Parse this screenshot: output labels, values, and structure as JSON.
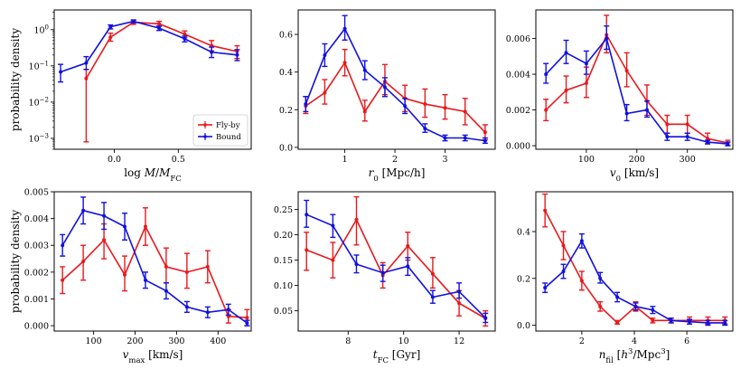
{
  "colors": {
    "flyby": "#e8191c",
    "bound": "#1010e0",
    "axis": "#000000",
    "background": "#ffffff"
  },
  "y_axis_label": "probability density",
  "legend": {
    "entries": [
      "Fly-by",
      "Bound"
    ],
    "placement": "lower-right",
    "panel": 0
  },
  "chart_data": [
    {
      "type": "line",
      "title": "",
      "xlabel": "log M/M_FC",
      "ylabel": "probability density",
      "yscale": "log",
      "xlim": [
        -0.47,
        1.07
      ],
      "ylim": [
        0.0005,
        3.5
      ],
      "xticks": [
        0,
        0.5
      ],
      "xtick_labels": [
        "0.0",
        "0.5"
      ],
      "yticks": [
        0.001,
        0.01,
        0.1,
        1
      ],
      "ytick_labels": [
        "10⁻³",
        "10⁻²",
        "10⁻¹",
        "10⁰"
      ],
      "series": [
        {
          "name": "Fly-by",
          "x": [
            -0.22,
            -0.03,
            0.15,
            0.35,
            0.55,
            0.76,
            0.96
          ],
          "y": [
            0.045,
            0.62,
            1.6,
            1.45,
            0.75,
            0.36,
            0.25
          ],
          "err_low": [
            0.0008,
            0.48,
            1.4,
            1.25,
            0.6,
            0.26,
            0.16
          ],
          "err_high": [
            0.08,
            0.8,
            1.85,
            1.7,
            0.92,
            0.5,
            0.36
          ]
        },
        {
          "name": "Bound",
          "x": [
            -0.42,
            -0.22,
            -0.03,
            0.15,
            0.35,
            0.55,
            0.76,
            0.96
          ],
          "y": [
            0.068,
            0.12,
            1.2,
            1.7,
            1.1,
            0.56,
            0.24,
            0.2
          ],
          "err_low": [
            0.036,
            0.08,
            1.05,
            1.55,
            0.95,
            0.46,
            0.17,
            0.14
          ],
          "err_high": [
            0.11,
            0.18,
            1.35,
            1.85,
            1.25,
            0.66,
            0.33,
            0.28
          ]
        }
      ]
    },
    {
      "type": "line",
      "title": "",
      "xlabel": "r_0 [Mpc/h]",
      "ylabel": "",
      "xlim": [
        0.07,
        4.0
      ],
      "ylim": [
        -0.01,
        0.73
      ],
      "xticks": [
        1,
        2,
        3
      ],
      "xtick_labels": [
        "1",
        "2",
        "3"
      ],
      "yticks": [
        0,
        0.2,
        0.4,
        0.6
      ],
      "ytick_labels": [
        "0.0",
        "0.2",
        "0.4",
        "0.6"
      ],
      "series": [
        {
          "name": "Fly-by",
          "x": [
            0.22,
            0.6,
            1.0,
            1.4,
            1.8,
            2.2,
            2.6,
            3.0,
            3.4,
            3.8
          ],
          "y": [
            0.22,
            0.29,
            0.45,
            0.19,
            0.35,
            0.26,
            0.23,
            0.21,
            0.19,
            0.08
          ],
          "err_low": [
            0.18,
            0.23,
            0.38,
            0.14,
            0.28,
            0.19,
            0.16,
            0.15,
            0.12,
            0.04
          ],
          "err_high": [
            0.27,
            0.36,
            0.52,
            0.25,
            0.44,
            0.33,
            0.31,
            0.28,
            0.26,
            0.12
          ]
        },
        {
          "name": "Bound",
          "x": [
            0.22,
            0.6,
            1.0,
            1.4,
            1.8,
            2.2,
            2.6,
            3.0,
            3.4,
            3.8
          ],
          "y": [
            0.23,
            0.49,
            0.63,
            0.41,
            0.32,
            0.22,
            0.1,
            0.05,
            0.05,
            0.035
          ],
          "err_low": [
            0.19,
            0.43,
            0.57,
            0.36,
            0.27,
            0.18,
            0.08,
            0.035,
            0.035,
            0.022
          ],
          "err_high": [
            0.27,
            0.55,
            0.7,
            0.46,
            0.37,
            0.26,
            0.125,
            0.065,
            0.065,
            0.05
          ]
        }
      ]
    },
    {
      "type": "line",
      "title": "",
      "xlabel": "v_0 [km/s]",
      "ylabel": "",
      "xlim": [
        0,
        390
      ],
      "ylim": [
        -0.0002,
        0.0076
      ],
      "xticks": [
        100,
        200,
        300
      ],
      "xtick_labels": [
        "100",
        "200",
        "300"
      ],
      "yticks": [
        0,
        0.002,
        0.004,
        0.006
      ],
      "ytick_labels": [
        "0.000",
        "0.002",
        "0.004",
        "0.006"
      ],
      "series": [
        {
          "name": "Fly-by",
          "x": [
            20,
            60,
            100,
            140,
            180,
            220,
            260,
            300,
            340,
            380
          ],
          "y": [
            0.002,
            0.0031,
            0.0035,
            0.0062,
            0.0042,
            0.0025,
            0.0012,
            0.0012,
            0.0004,
            0.00015
          ],
          "err_low": [
            0.0014,
            0.0024,
            0.0027,
            0.0052,
            0.0033,
            0.0017,
            0.0007,
            0.0007,
            0.0001,
            0.0
          ],
          "err_high": [
            0.0026,
            0.0039,
            0.0044,
            0.0073,
            0.0052,
            0.0034,
            0.0017,
            0.0017,
            0.0007,
            0.0003
          ]
        },
        {
          "name": "Bound",
          "x": [
            20,
            60,
            100,
            140,
            180,
            220,
            260,
            300,
            340,
            380
          ],
          "y": [
            0.004,
            0.0052,
            0.0046,
            0.006,
            0.0018,
            0.002,
            0.0005,
            0.0005,
            0.0002,
            0.0001
          ],
          "err_low": [
            0.0035,
            0.0046,
            0.004,
            0.0054,
            0.0014,
            0.0016,
            0.0003,
            0.0003,
            0.0001,
            0.0
          ],
          "err_high": [
            0.0046,
            0.0059,
            0.0053,
            0.0067,
            0.0023,
            0.0025,
            0.0007,
            0.0007,
            0.0003,
            0.0002
          ]
        }
      ]
    },
    {
      "type": "line",
      "title": "",
      "xlabel": "v_max [km/s]",
      "ylabel": "probability density",
      "xlim": [
        5,
        480
      ],
      "ylim": [
        -0.0002,
        0.005
      ],
      "xticks": [
        100,
        200,
        300,
        400
      ],
      "xtick_labels": [
        "100",
        "200",
        "300",
        "400"
      ],
      "yticks": [
        0,
        0.001,
        0.002,
        0.003,
        0.004,
        0.005
      ],
      "ytick_labels": [
        "0.000",
        "0.001",
        "0.002",
        "0.003",
        "0.004",
        "0.005"
      ],
      "series": [
        {
          "name": "Fly-by",
          "x": [
            25,
            75,
            125,
            175,
            225,
            275,
            325,
            375,
            425,
            470
          ],
          "y": [
            0.0017,
            0.0024,
            0.0032,
            0.0019,
            0.0037,
            0.0022,
            0.002,
            0.0022,
            0.00035,
            0.0003
          ],
          "err_low": [
            0.0012,
            0.0017,
            0.0025,
            0.0013,
            0.003,
            0.0016,
            0.0014,
            0.0016,
            0.0001,
            0.0
          ],
          "err_high": [
            0.0022,
            0.003,
            0.0038,
            0.0026,
            0.0044,
            0.0029,
            0.0027,
            0.0028,
            0.0006,
            0.0006
          ]
        },
        {
          "name": "Bound",
          "x": [
            25,
            75,
            125,
            175,
            225,
            275,
            325,
            375,
            425,
            470
          ],
          "y": [
            0.003,
            0.0043,
            0.0041,
            0.0037,
            0.0017,
            0.0013,
            0.0007,
            0.0005,
            0.0006,
            0.0001
          ],
          "err_low": [
            0.0026,
            0.0038,
            0.0036,
            0.0032,
            0.0014,
            0.001,
            0.0005,
            0.0003,
            0.0004,
            0.0
          ],
          "err_high": [
            0.0034,
            0.0048,
            0.0046,
            0.0042,
            0.002,
            0.0016,
            0.0009,
            0.0007,
            0.0008,
            0.0002
          ]
        }
      ]
    },
    {
      "type": "line",
      "title": "",
      "xlabel": "t_FC [Gyr]",
      "ylabel": "",
      "xlim": [
        6.2,
        13.3
      ],
      "ylim": [
        0.01,
        0.285
      ],
      "xticks": [
        8,
        10,
        12
      ],
      "xtick_labels": [
        "8",
        "10",
        "12"
      ],
      "yticks": [
        0.05,
        0.1,
        0.15,
        0.2,
        0.25
      ],
      "ytick_labels": [
        "0.05",
        "0.10",
        "0.15",
        "0.20",
        "0.25"
      ],
      "series": [
        {
          "name": "Fly-by",
          "x": [
            6.5,
            7.45,
            8.3,
            9.25,
            10.15,
            11.05,
            12.0,
            12.95
          ],
          "y": [
            0.17,
            0.15,
            0.23,
            0.12,
            0.178,
            0.123,
            0.065,
            0.035
          ],
          "err_low": [
            0.13,
            0.115,
            0.18,
            0.095,
            0.15,
            0.095,
            0.04,
            0.02
          ],
          "err_high": [
            0.205,
            0.185,
            0.275,
            0.145,
            0.205,
            0.155,
            0.09,
            0.05
          ]
        },
        {
          "name": "Bound",
          "x": [
            6.5,
            7.45,
            8.3,
            9.25,
            10.15,
            11.05,
            12.0,
            12.95
          ],
          "y": [
            0.24,
            0.218,
            0.142,
            0.125,
            0.138,
            0.077,
            0.088,
            0.036
          ],
          "err_low": [
            0.215,
            0.195,
            0.125,
            0.108,
            0.12,
            0.065,
            0.075,
            0.027
          ],
          "err_high": [
            0.268,
            0.24,
            0.16,
            0.14,
            0.155,
            0.09,
            0.105,
            0.045
          ]
        }
      ]
    },
    {
      "type": "line",
      "title": "",
      "xlabel": "n_fil [h^3/Mpc^3]",
      "ylabel": "",
      "xlim": [
        0.25,
        7.75
      ],
      "ylim": [
        -0.025,
        0.57
      ],
      "xticks": [
        2,
        4,
        6
      ],
      "xtick_labels": [
        "2",
        "4",
        "6"
      ],
      "yticks": [
        0,
        0.2,
        0.4
      ],
      "ytick_labels": [
        "0.0",
        "0.2",
        "0.4"
      ],
      "series": [
        {
          "name": "Fly-by",
          "x": [
            0.6,
            1.3,
            2.0,
            2.7,
            3.35,
            4.05,
            4.7,
            5.4,
            6.1,
            6.8,
            7.45
          ],
          "y": [
            0.49,
            0.34,
            0.19,
            0.08,
            0.01,
            0.08,
            0.02,
            0.02,
            0.02,
            0.02,
            0.02
          ],
          "err_low": [
            0.42,
            0.28,
            0.15,
            0.06,
            0.005,
            0.06,
            0.01,
            0.01,
            0.005,
            0.005,
            0.005
          ],
          "err_high": [
            0.56,
            0.4,
            0.23,
            0.1,
            0.02,
            0.1,
            0.03,
            0.03,
            0.035,
            0.035,
            0.035
          ]
        },
        {
          "name": "Bound",
          "x": [
            0.6,
            1.3,
            2.0,
            2.7,
            3.35,
            4.05,
            4.7,
            5.4,
            6.1,
            6.8,
            7.45
          ],
          "y": [
            0.16,
            0.23,
            0.36,
            0.2,
            0.12,
            0.08,
            0.065,
            0.02,
            0.015,
            0.01,
            0.01
          ],
          "err_low": [
            0.14,
            0.2,
            0.33,
            0.18,
            0.1,
            0.065,
            0.05,
            0.01,
            0.005,
            0.0,
            0.0
          ],
          "err_high": [
            0.18,
            0.26,
            0.39,
            0.225,
            0.14,
            0.095,
            0.08,
            0.03,
            0.025,
            0.02,
            0.02
          ]
        }
      ]
    }
  ]
}
